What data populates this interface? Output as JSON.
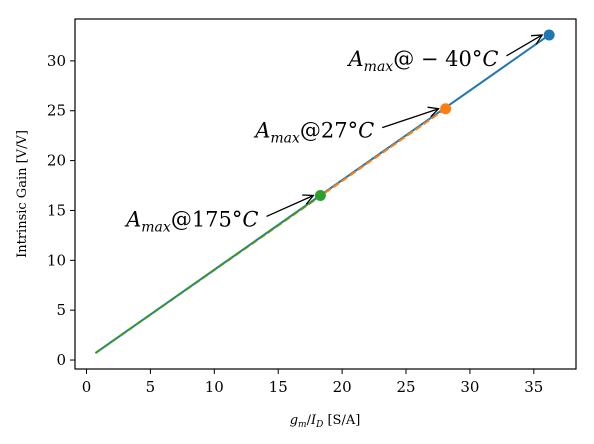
{
  "chart_data": {
    "type": "line",
    "xlabel_main": "g",
    "xlabel_sub1": "m",
    "xlabel_slash": "/",
    "xlabel_main2": "I",
    "xlabel_sub2": "D",
    "xlabel_unit": " [S/A]",
    "ylabel": "Intrinsic Gain [V/V]",
    "xlim": [
      -0.9,
      38.3
    ],
    "ylim": [
      -0.9,
      34.2
    ],
    "xticks": [
      0,
      5,
      10,
      15,
      20,
      25,
      30,
      35
    ],
    "yticks": [
      0,
      5,
      10,
      15,
      20,
      25,
      30
    ],
    "grid": false,
    "series": [
      {
        "color": "#1f77b4",
        "dash": "solid",
        "x": [
          0.7,
          36.2
        ],
        "y": [
          0.7,
          32.6
        ]
      },
      {
        "color": "#ff7f0e",
        "dash": "dashed",
        "x": [
          0.7,
          28.1
        ],
        "y": [
          0.7,
          25.2
        ]
      },
      {
        "color": "#2ca02c",
        "dash": "dashed",
        "x": [
          0.7,
          18.3
        ],
        "y": [
          0.7,
          16.5
        ]
      }
    ],
    "points": [
      {
        "x": 36.2,
        "y": 32.6,
        "color": "#1f77b4"
      },
      {
        "x": 28.1,
        "y": 25.2,
        "color": "#ff7f0e"
      },
      {
        "x": 18.3,
        "y": 16.5,
        "color": "#2ca02c"
      }
    ],
    "annotations": [
      {
        "A": "A",
        "sub": "max",
        "at": "@",
        "rest": " − 40°",
        "C": "C",
        "text_x": 20.5,
        "text_y": 29.5,
        "target_x": 36.2,
        "target_y": 32.6
      },
      {
        "A": "A",
        "sub": "max",
        "at": "@",
        "rest": "27°",
        "C": "C",
        "text_x": 13.2,
        "text_y": 22.3,
        "target_x": 28.1,
        "target_y": 25.2
      },
      {
        "A": "A",
        "sub": "max",
        "at": "@",
        "rest": "175°",
        "C": "C",
        "text_x": 3.1,
        "text_y": 13.4,
        "target_x": 18.3,
        "target_y": 16.5
      }
    ]
  }
}
